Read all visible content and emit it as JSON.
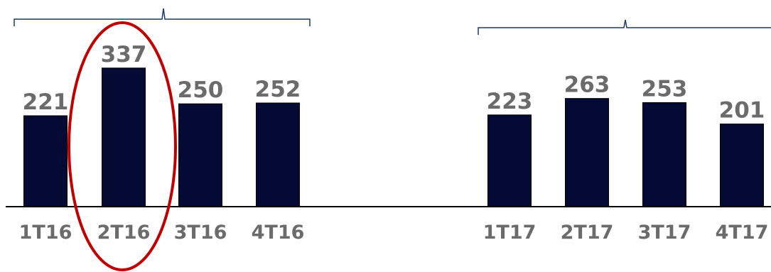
{
  "chart_data": {
    "type": "bar",
    "categories": [
      "1T16",
      "2T16",
      "3T16",
      "4T16",
      "1T17",
      "2T17",
      "3T17",
      "4T17"
    ],
    "values": [
      221,
      337,
      250,
      252,
      223,
      263,
      253,
      201
    ],
    "groups": [
      {
        "categories": [
          "1T16",
          "2T16",
          "3T16",
          "4T16"
        ]
      },
      {
        "categories": [
          "1T17",
          "2T17",
          "3T17",
          "4T17"
        ]
      }
    ],
    "highlighted_category": "2T16",
    "title": "",
    "xlabel": "",
    "ylabel": "",
    "grid": false,
    "legend": "none"
  },
  "colors": {
    "bar": "#050a35",
    "highlight_ellipse": "#c00000",
    "bracket": "#1f3864",
    "label_text": "#6b6b6b",
    "baseline": "#000000"
  }
}
